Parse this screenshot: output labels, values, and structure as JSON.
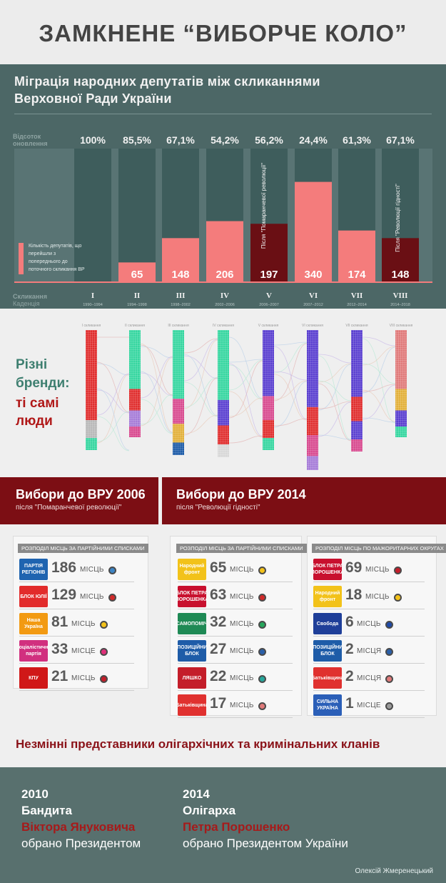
{
  "title": "ЗАМКНЕНЕ “ВИБОРЧЕ КОЛО”",
  "migration": {
    "title_line1": "Міграція народних депутатів між скликаннями",
    "title_line2": "Верховної Ради України",
    "renewal_label_1": "Відсоток",
    "renewal_label_2": "оновлення",
    "convocation_label": "Скликання",
    "cadence_label": "Каденція",
    "legend": "Кількість депутатів, що перейшли з попереднього до поточного скликання ВР",
    "colors": {
      "panel": "#4c6766",
      "bar": "#3e5d5c",
      "ghost": "#6b8584",
      "pink": "#f47c7c",
      "dark_red": "#6a0f14"
    },
    "after_orange": "Після \"Помаранчевої революції\"",
    "after_dignity": "Після \"Революції гідності\"",
    "convocations": [
      {
        "roman": "I",
        "years": "1990–1994",
        "percent": "100%",
        "carried": ""
      },
      {
        "roman": "II",
        "years": "1994–1998",
        "percent": "85,5%",
        "carried": "65"
      },
      {
        "roman": "III",
        "years": "1998–2002",
        "percent": "67,1%",
        "carried": "148"
      },
      {
        "roman": "IV",
        "years": "2002–2006",
        "percent": "54,2%",
        "carried": "206"
      },
      {
        "roman": "V",
        "years": "2006–2007",
        "percent": "56,2%",
        "carried": "197"
      },
      {
        "roman": "VI",
        "years": "2007–2012",
        "percent": "24,4%",
        "carried": "340"
      },
      {
        "roman": "VII",
        "years": "2012–2014",
        "percent": "61,3%",
        "carried": "174"
      },
      {
        "roman": "VIII",
        "years": "2014–2018",
        "percent": "67,1%",
        "carried": "148"
      }
    ],
    "carried_values": [
      0,
      65,
      148,
      206,
      197,
      340,
      174,
      148
    ]
  },
  "brands": {
    "line1": "Різні",
    "line2": "бренди:",
    "line3": "ті самі",
    "line4": "люди",
    "column_labels": [
      "I скликання",
      "II скликання",
      "III скликання",
      "IV скликання",
      "V скликання",
      "VI скликання",
      "VII скликання",
      "VIII скликання"
    ]
  },
  "elections": {
    "e2006": {
      "title": "Вибори до ВРУ 2006",
      "subtitle": "після \"Помаранчевої революції\"",
      "list_header": "РОЗПОДІЛ МІСЦЬ ЗА ПАРТІЙНИМИ СПИСКАМИ",
      "parties": [
        {
          "logo": "ПАРТІЯ РЕГІОНІВ",
          "seats": "186",
          "unit": "МІСЦЬ",
          "logo_color": "#1f64b0",
          "pin_color": "#3c84c4"
        },
        {
          "logo": "БЛОК ЮЛІЇ",
          "seats": "129",
          "unit": "МІСЦЬ",
          "logo_color": "#e22b2b",
          "pin_color": "#d12a2a"
        },
        {
          "logo": "Наша Україна",
          "seats": "81",
          "unit": "МІСЦЬ",
          "logo_color": "#f29a12",
          "pin_color": "#f3c21a"
        },
        {
          "logo": "соціалістична партія",
          "seats": "33",
          "unit": "МІСЦЕ",
          "logo_color": "#d1307f",
          "pin_color": "#e0307a"
        },
        {
          "logo": "КПУ",
          "seats": "21",
          "unit": "МІСЦЬ",
          "logo_color": "#d01818",
          "pin_color": "#c41e2a"
        }
      ]
    },
    "e2014": {
      "title": "Вибори до ВРУ 2014",
      "subtitle": "після \"Революції гідності\"",
      "list_header": "РОЗПОДІЛ МІСЦЬ ЗА ПАРТІЙНИМИ СПИСКАМИ",
      "district_header": "РОЗПОДІЛ МІСЦЬ ПО МАЖОРИТАРНИХ ОКРУГАХ",
      "parties": [
        {
          "logo": "Народний фронт",
          "seats": "65",
          "unit": "МІСЦЬ",
          "logo_color": "#f2c21a",
          "pin_color": "#f3c21a"
        },
        {
          "logo": "БЛОК ПЕТРА ПОРОШЕНКА",
          "seats": "63",
          "unit": "МІСЦЬ",
          "logo_color": "#c8102e",
          "pin_color": "#d12a2a"
        },
        {
          "logo": "САМОПОМІЧ",
          "seats": "32",
          "unit": "МІСЦЬ",
          "logo_color": "#1f8a55",
          "pin_color": "#26a65b"
        },
        {
          "logo": "ОПОЗИЦІЙНИЙ БЛОК",
          "seats": "27",
          "unit": "МІСЦЬ",
          "logo_color": "#1e5ca8",
          "pin_color": "#2a5fa8"
        },
        {
          "logo": "ЛЯШКО",
          "seats": "22",
          "unit": "МІСЦЬ",
          "logo_color": "#c41e2a",
          "pin_color": "#26a69a"
        },
        {
          "logo": "Батьківщина",
          "seats": "17",
          "unit": "МІСЦЬ",
          "logo_color": "#e0312f",
          "pin_color": "#e07a7a"
        }
      ],
      "districts": [
        {
          "logo": "БЛОК ПЕТРА ПОРОШЕНКА",
          "seats": "69",
          "unit": "МІСЦЬ",
          "logo_color": "#c8102e",
          "pin_color": "#c41e2a"
        },
        {
          "logo": "Народний фронт",
          "seats": "18",
          "unit": "МІСЦЬ",
          "logo_color": "#f2c21a",
          "pin_color": "#f3c21a"
        },
        {
          "logo": "Свобода",
          "seats": "6",
          "unit": "МІСЦЬ",
          "logo_color": "#1f3f99",
          "pin_color": "#1f4aa8"
        },
        {
          "logo": "ОПОЗИЦІЙНИЙ БЛОК",
          "seats": "2",
          "unit": "МІСЦЯ",
          "logo_color": "#1e5ca8",
          "pin_color": "#2a5fa8"
        },
        {
          "logo": "Батьківщина",
          "seats": "2",
          "unit": "МІСЦЯ",
          "logo_color": "#e0312f",
          "pin_color": "#e07a7a"
        },
        {
          "logo": "СИЛЬНА УКРАЇНА",
          "seats": "1",
          "unit": "МІСЦЕ",
          "logo_color": "#2b5fb8",
          "pin_color": "#9a9a9a"
        }
      ]
    }
  },
  "oligarch_line": "Незмінні представники олігархічних та кримінальних кланів",
  "footer": {
    "left": {
      "year": "2010",
      "label": "Бандита",
      "name": "Віктора Януковича",
      "text": "обрано Президентом"
    },
    "right": {
      "year": "2014",
      "label": "Олігарха",
      "name": "Петра Порошенко",
      "text": "обрано Президентом України"
    },
    "author": "Олексій Жмеренецький"
  }
}
